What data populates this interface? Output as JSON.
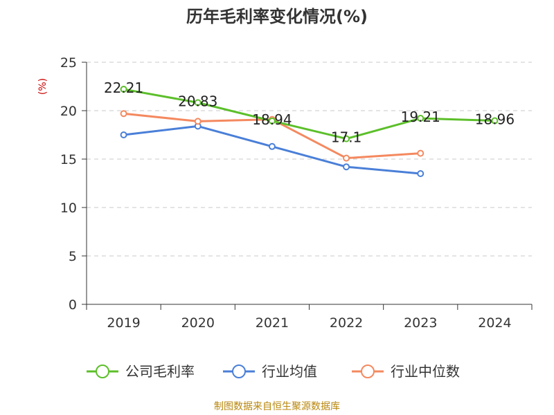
{
  "chart_data": {
    "type": "line",
    "title": "历年毛利率变化情况(%)",
    "ylabel": "(%)",
    "categories": [
      "2019",
      "2020",
      "2021",
      "2022",
      "2023",
      "2024"
    ],
    "ylim": [
      0,
      25
    ],
    "yticks": [
      "0",
      "5",
      "10",
      "15",
      "20",
      "25"
    ],
    "grid": true,
    "legend_position": "bottom",
    "series": [
      {
        "name": "公司毛利率",
        "color": "#5cbf2a",
        "values": [
          22.21,
          20.83,
          18.94,
          17.1,
          19.21,
          18.96
        ],
        "labels": [
          "22.21",
          "20.83",
          "18.94",
          "17.1",
          "19.21",
          "18.96"
        ]
      },
      {
        "name": "行业均值",
        "color": "#4a7fd8",
        "values": [
          17.5,
          18.4,
          16.3,
          14.2,
          13.5,
          null
        ]
      },
      {
        "name": "行业中位数",
        "color": "#f4895f",
        "values": [
          19.7,
          18.9,
          19.1,
          15.1,
          15.6,
          null
        ]
      }
    ]
  },
  "source_text": "制图数据来自恒生聚源数据库"
}
